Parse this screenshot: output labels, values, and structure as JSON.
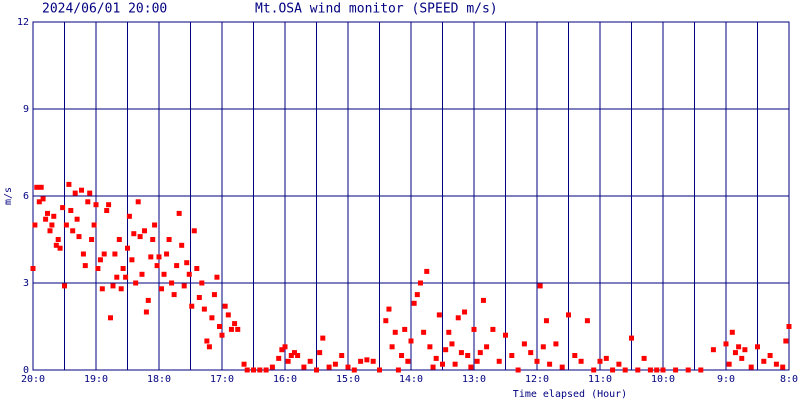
{
  "chart_data": {
    "type": "scatter",
    "timestamp": "2024/06/01 20:00",
    "title": "Mt.OSA wind monitor (SPEED m/s)",
    "x_label": "Time elapsed (Hour)",
    "y_label": "m/s",
    "color": "#ff0000",
    "grid": true,
    "xlim": [
      0,
      12
    ],
    "ylim": [
      0,
      12
    ],
    "yticks": [
      0,
      3,
      6,
      9,
      12
    ],
    "xticks": [
      {
        "value": 0,
        "label": "20:0"
      },
      {
        "value": 1,
        "label": "19:0"
      },
      {
        "value": 2,
        "label": "18:0"
      },
      {
        "value": 3,
        "label": "17:0"
      },
      {
        "value": 4,
        "label": "16:0"
      },
      {
        "value": 5,
        "label": "15:0"
      },
      {
        "value": 6,
        "label": "14:0"
      },
      {
        "value": 7,
        "label": "13:0"
      },
      {
        "value": 8,
        "label": "12:0"
      },
      {
        "value": 9,
        "label": "11:0"
      },
      {
        "value": 10,
        "label": "10:0"
      },
      {
        "value": 11,
        "label": "9:0"
      },
      {
        "value": 12,
        "label": "8:0"
      }
    ],
    "x_minor_ticks": [
      0.5,
      1.5,
      2.5,
      3.5,
      4.5,
      5.5,
      6.5,
      7.5,
      8.5,
      9.5,
      10.5,
      11.5
    ],
    "x": [
      0,
      0.03,
      0.06,
      0.1,
      0.13,
      0.16,
      0.2,
      0.23,
      0.27,
      0.3,
      0.33,
      0.37,
      0.4,
      0.43,
      0.47,
      0.5,
      0.53,
      0.57,
      0.6,
      0.63,
      0.67,
      0.7,
      0.73,
      0.77,
      0.8,
      0.83,
      0.87,
      0.9,
      0.93,
      0.97,
      1.0,
      1.03,
      1.07,
      1.1,
      1.13,
      1.17,
      1.2,
      1.23,
      1.27,
      1.3,
      1.33,
      1.37,
      1.4,
      1.43,
      1.47,
      1.5,
      1.53,
      1.57,
      1.6,
      1.63,
      1.67,
      1.7,
      1.73,
      1.77,
      1.8,
      1.83,
      1.87,
      1.9,
      1.93,
      1.97,
      2.0,
      2.04,
      2.08,
      2.12,
      2.16,
      2.2,
      2.24,
      2.28,
      2.32,
      2.36,
      2.4,
      2.44,
      2.48,
      2.52,
      2.56,
      2.6,
      2.64,
      2.68,
      2.72,
      2.76,
      2.8,
      2.84,
      2.88,
      2.92,
      2.96,
      3.0,
      3.05,
      3.1,
      3.15,
      3.2,
      3.25,
      3.35,
      3.4,
      3.5,
      3.6,
      3.7,
      3.8,
      3.9,
      3.95,
      4.0,
      4.05,
      4.1,
      4.15,
      4.2,
      4.3,
      4.4,
      4.5,
      4.55,
      4.6,
      4.7,
      4.8,
      4.9,
      5.0,
      5.1,
      5.2,
      5.3,
      5.4,
      5.5,
      5.6,
      5.65,
      5.7,
      5.75,
      5.8,
      5.85,
      5.9,
      5.95,
      6.0,
      6.05,
      6.1,
      6.15,
      6.2,
      6.25,
      6.3,
      6.35,
      6.4,
      6.45,
      6.5,
      6.55,
      6.6,
      6.65,
      6.7,
      6.75,
      6.8,
      6.85,
      6.9,
      6.95,
      7.0,
      7.05,
      7.1,
      7.15,
      7.2,
      7.3,
      7.4,
      7.5,
      7.6,
      7.7,
      7.8,
      7.9,
      8.0,
      8.05,
      8.1,
      8.15,
      8.2,
      8.3,
      8.4,
      8.5,
      8.6,
      8.7,
      8.8,
      8.9,
      9.0,
      9.1,
      9.2,
      9.3,
      9.4,
      9.5,
      9.6,
      9.7,
      9.8,
      9.9,
      10.0,
      10.2,
      10.4,
      10.6,
      10.8,
      11.0,
      11.05,
      11.1,
      11.15,
      11.2,
      11.25,
      11.3,
      11.4,
      11.5,
      11.6,
      11.7,
      11.8,
      11.9,
      11.95,
      12.0
    ],
    "values": [
      3.5,
      5.0,
      6.3,
      5.8,
      6.3,
      5.9,
      5.2,
      5.4,
      4.8,
      5.0,
      5.3,
      4.3,
      4.5,
      4.2,
      5.6,
      2.9,
      5.0,
      6.4,
      5.5,
      4.8,
      6.1,
      5.2,
      4.6,
      6.2,
      4.0,
      3.6,
      5.8,
      6.1,
      4.5,
      5.0,
      5.7,
      3.5,
      3.8,
      2.8,
      4.0,
      5.5,
      5.7,
      1.8,
      2.9,
      4.0,
      3.2,
      4.5,
      2.8,
      3.5,
      3.2,
      4.2,
      5.3,
      3.8,
      4.7,
      3.0,
      5.8,
      4.6,
      3.3,
      4.8,
      2.0,
      2.4,
      3.9,
      4.5,
      5.0,
      3.6,
      3.9,
      2.8,
      3.3,
      4.0,
      4.5,
      3.0,
      2.6,
      3.6,
      5.4,
      4.3,
      2.9,
      3.7,
      3.3,
      2.2,
      4.8,
      3.5,
      2.5,
      3.0,
      2.1,
      1.0,
      0.8,
      1.8,
      2.6,
      3.2,
      1.5,
      1.2,
      2.2,
      1.9,
      1.4,
      1.6,
      1.4,
      0.2,
      0,
      0,
      0,
      0,
      0.1,
      0.4,
      0.7,
      0.8,
      0.3,
      0.5,
      0.6,
      0.5,
      0.1,
      0.3,
      0,
      0.6,
      1.1,
      0.1,
      0.2,
      0.5,
      0.1,
      0,
      0.3,
      0.35,
      0.3,
      0,
      1.7,
      2.1,
      0.8,
      1.3,
      0,
      0.5,
      1.4,
      0.3,
      1.0,
      2.3,
      2.6,
      3.0,
      1.3,
      3.4,
      0.8,
      0.1,
      0.4,
      1.9,
      0.2,
      0.7,
      1.3,
      0.9,
      0.2,
      1.8,
      0.6,
      2.0,
      0.5,
      0.1,
      1.4,
      0.3,
      0.6,
      2.4,
      0.8,
      1.4,
      0.3,
      1.2,
      0.5,
      0,
      0.9,
      0.6,
      0.3,
      2.9,
      0.8,
      1.7,
      0.2,
      0.9,
      0.1,
      1.9,
      0.5,
      0.3,
      1.7,
      0,
      0.3,
      0.4,
      0,
      0.2,
      0,
      1.1,
      0,
      0.4,
      0,
      0,
      0,
      0,
      0,
      0,
      0.7,
      0.9,
      0.2,
      1.3,
      0.6,
      0.8,
      0.4,
      0.7,
      0.1,
      0.8,
      0.3,
      0.5,
      0.2,
      0.1,
      1.0,
      1.5
    ]
  }
}
